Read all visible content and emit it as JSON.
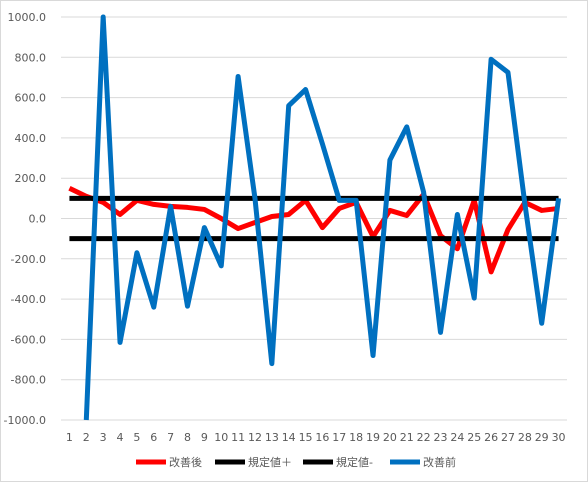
{
  "chart_data": {
    "type": "line",
    "title": "",
    "xlabel": "",
    "ylabel": "",
    "ylim": [
      -1000,
      1000
    ],
    "y_tick_step": 200,
    "y_tick_labels": [
      "1000.0",
      "800.0",
      "600.0",
      "400.0",
      "200.0",
      "0.0",
      "-200.0",
      "-400.0",
      "-600.0",
      "-800.0",
      "-1000.0"
    ],
    "grid": "horizontal",
    "legend_position": "bottom",
    "x": [
      1,
      2,
      3,
      4,
      5,
      6,
      7,
      8,
      9,
      10,
      11,
      12,
      13,
      14,
      15,
      16,
      17,
      18,
      19,
      20,
      21,
      22,
      23,
      24,
      25,
      26,
      27,
      28,
      29,
      30
    ],
    "series": [
      {
        "name": "改善後",
        "color": "#ff0000",
        "values": [
          150,
          110,
          80,
          20,
          90,
          70,
          60,
          55,
          45,
          0,
          -50,
          -20,
          10,
          20,
          90,
          -45,
          50,
          80,
          -90,
          40,
          15,
          120,
          -85,
          -150,
          90,
          -265,
          -55,
          80,
          40,
          50
        ]
      },
      {
        "name": "規定値＋",
        "color": "#000000",
        "values": [
          100,
          100,
          100,
          100,
          100,
          100,
          100,
          100,
          100,
          100,
          100,
          100,
          100,
          100,
          100,
          100,
          100,
          100,
          100,
          100,
          100,
          100,
          100,
          100,
          100,
          100,
          100,
          100,
          100,
          100
        ]
      },
      {
        "name": "規定値-",
        "color": "#000000",
        "values": [
          -100,
          -100,
          -100,
          -100,
          -100,
          -100,
          -100,
          -100,
          -100,
          -100,
          -100,
          -100,
          -100,
          -100,
          -100,
          -100,
          -100,
          -100,
          -100,
          -100,
          -100,
          -100,
          -100,
          -100,
          -100,
          -100,
          -100,
          -100,
          -100,
          -100
        ]
      },
      {
        "name": "改善前",
        "color": "#0070c0",
        "values": [
          null,
          -1000,
          1000,
          -615,
          -170,
          -440,
          60,
          -435,
          -45,
          -235,
          705,
          100,
          -720,
          560,
          640,
          370,
          90,
          90,
          -680,
          290,
          455,
          130,
          -565,
          20,
          -395,
          790,
          725,
          75,
          -520,
          100
        ]
      }
    ]
  }
}
